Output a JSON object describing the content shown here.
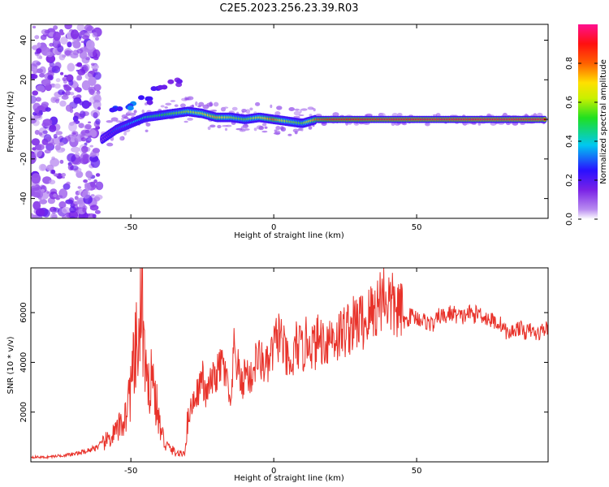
{
  "figure_title": "C2E5.2023.256.23.39.R03",
  "colors": {
    "snr_line": "#e8322a",
    "spectrum_ridge": "#e41e1e",
    "frame": "#000000"
  },
  "chart_data": [
    {
      "type": "heatmap",
      "title": "",
      "xlabel": "Height of straight line (km)",
      "ylabel": "Frequency (Hz)",
      "xlim": [
        -85,
        96
      ],
      "ylim": [
        -50,
        48
      ],
      "x_ticks": [
        -50,
        0,
        50
      ],
      "y_ticks": [
        -40,
        -20,
        0,
        20,
        40
      ],
      "grid": false,
      "colormap": "rainbow (purple-blue-cyan-green-yellow-red-magenta)",
      "colorbar": {
        "label": "Normalized spectral amplitude",
        "range": [
          0,
          1
        ],
        "ticks": [
          0.0,
          0.2,
          0.4,
          0.6,
          0.8
        ]
      },
      "ridge": {
        "description": "main spectral ridge (normalized amplitude)",
        "x": [
          -60,
          -55,
          -50,
          -45,
          -40,
          -35,
          -30,
          -25,
          -20,
          -15,
          -10,
          -5,
          0,
          5,
          10,
          15,
          20,
          30,
          40,
          50,
          60,
          70,
          80,
          90,
          95
        ],
        "y": [
          -10,
          -5,
          -2,
          1,
          2,
          3,
          4,
          3,
          1,
          1,
          0,
          1,
          0,
          -1,
          -2,
          0,
          0,
          0,
          0,
          0,
          0,
          0,
          0,
          0,
          0
        ],
        "amplitude": [
          0.2,
          0.3,
          0.35,
          0.45,
          0.5,
          0.55,
          0.6,
          0.65,
          0.75,
          0.6,
          0.55,
          0.65,
          0.8,
          0.6,
          0.55,
          0.8,
          0.9,
          0.9,
          0.92,
          0.92,
          0.93,
          0.93,
          0.93,
          0.93,
          0.93
        ]
      },
      "upper_branch": {
        "x": [
          -55,
          -50,
          -45,
          -40,
          -35
        ],
        "y": [
          6,
          7,
          10,
          15,
          19
        ],
        "amplitude": [
          0.25,
          0.3,
          0.2,
          0.2,
          0.15
        ]
      }
    },
    {
      "type": "line",
      "title": "",
      "xlabel": "Height of straight line (km)",
      "ylabel": "SNR (10 * v/v)",
      "xlim": [
        -85,
        96
      ],
      "ylim": [
        0,
        7800
      ],
      "x_ticks": [
        -50,
        0,
        50
      ],
      "y_ticks": [
        2000,
        4000,
        6000
      ],
      "grid": false,
      "series": [
        {
          "color": "#e8322a",
          "x": [
            -85,
            -80,
            -75,
            -70,
            -65,
            -60,
            -55,
            -52,
            -50,
            -48,
            -47,
            -46,
            -45,
            -44,
            -43,
            -42,
            -40,
            -38,
            -36,
            -34,
            -32,
            -31,
            -30,
            -28,
            -26,
            -25,
            -24,
            -22,
            -20,
            -18,
            -16,
            -15,
            -14,
            -13,
            -12,
            -11,
            -10,
            -8,
            -6,
            -4,
            -2,
            0,
            2,
            4,
            6,
            8,
            10,
            12,
            14,
            16,
            18,
            20,
            22,
            24,
            26,
            28,
            30,
            32,
            34,
            36,
            38,
            40,
            42,
            44,
            46,
            48,
            50,
            52,
            54,
            56,
            58,
            60,
            62,
            64,
            66,
            68,
            70,
            72,
            74,
            76,
            78,
            80,
            82,
            84,
            86,
            88,
            90,
            92,
            94,
            96
          ],
          "y": [
            200,
            180,
            250,
            300,
            450,
            700,
            1200,
            1800,
            3000,
            4500,
            5000,
            6500,
            3500,
            2500,
            4000,
            3000,
            1500,
            700,
            500,
            350,
            300,
            500,
            1800,
            2500,
            3000,
            3500,
            2600,
            3200,
            3500,
            4000,
            3000,
            2000,
            4500,
            4000,
            3500,
            3000,
            3700,
            3300,
            4200,
            4000,
            3800,
            4600,
            5200,
            4300,
            3600,
            4800,
            4400,
            5000,
            4600,
            5000,
            4800,
            5100,
            5000,
            5200,
            5400,
            5500,
            5700,
            5600,
            6000,
            6200,
            6800,
            6500,
            6200,
            6100,
            5600,
            5900,
            5800,
            5700,
            5600,
            5500,
            5900,
            5800,
            6000,
            5900,
            5800,
            6000,
            5900,
            6000,
            5800,
            5700,
            5600,
            5500,
            5100,
            5300,
            5400,
            5200,
            5300,
            5100,
            5300,
            5400
          ]
        }
      ]
    }
  ]
}
